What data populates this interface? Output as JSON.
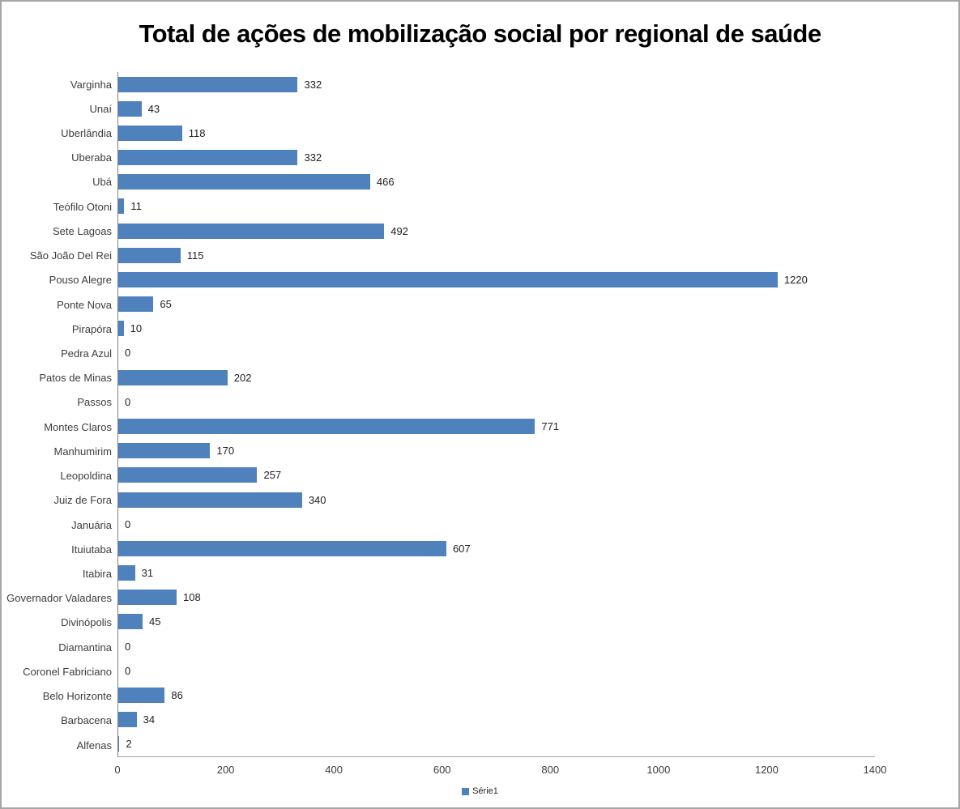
{
  "title": "Total de ações de mobilização social por regional de saúde",
  "legend": {
    "label": "Série1"
  },
  "colors": {
    "bar": "#4F81BD",
    "category_axis_line": "#808080",
    "x_axis_line": "#a6a6a6",
    "label_text": "#3d3d3d",
    "title_text": "#000000",
    "frame_border": "#a6a6a6",
    "background": "#ffffff"
  },
  "chart_data": {
    "type": "bar",
    "orientation": "horizontal",
    "title": "Total de ações de mobilização social por regional de saúde",
    "categories": [
      "Varginha",
      "Unaí",
      "Uberlândia",
      "Uberaba",
      "Ubá",
      "Teófilo Otoni",
      "Sete Lagoas",
      "São João Del Rei",
      "Pouso Alegre",
      "Ponte Nova",
      "Pirapóra",
      "Pedra Azul",
      "Patos de Minas",
      "Passos",
      "Montes Claros",
      "Manhumirim",
      "Leopoldina",
      "Juiz de Fora",
      "Januária",
      "Ituiutaba",
      "Itabira",
      "Governador Valadares",
      "Divinópolis",
      "Diamantina",
      "Coronel Fabriciano",
      "Belo Horizonte",
      "Barbacena",
      "Alfenas"
    ],
    "series": [
      {
        "name": "Série1",
        "values": [
          332,
          43,
          118,
          332,
          466,
          11,
          492,
          115,
          1220,
          65,
          10,
          0,
          202,
          0,
          771,
          170,
          257,
          340,
          0,
          607,
          31,
          108,
          45,
          0,
          0,
          86,
          34,
          2
        ]
      }
    ],
    "xlabel": "",
    "ylabel": "",
    "xlim": [
      0,
      1400
    ],
    "x_ticks": [
      0,
      200,
      400,
      600,
      800,
      1000,
      1200,
      1400
    ],
    "grid": false,
    "data_labels": true,
    "legend_position": "bottom",
    "category_order": "top-to-bottom"
  }
}
